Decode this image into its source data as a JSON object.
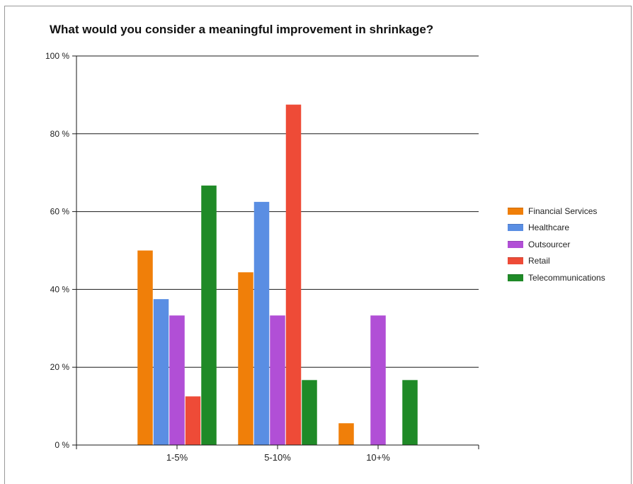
{
  "chart_data": {
    "type": "bar",
    "title": "What would you consider a meaningful improvement in shrinkage?",
    "categories": [
      "1-5%",
      "5-10%",
      "10+%"
    ],
    "series": [
      {
        "name": "Financial Services",
        "color": "#f07f09",
        "values": [
          50,
          44.4,
          5.6
        ]
      },
      {
        "name": "Healthcare",
        "color": "#5a8ee3",
        "values": [
          37.5,
          62.5,
          0
        ]
      },
      {
        "name": "Outsourcer",
        "color": "#b14fd6",
        "values": [
          33.3,
          33.3,
          33.3
        ]
      },
      {
        "name": "Retail",
        "color": "#ee4b37",
        "values": [
          12.5,
          87.5,
          0
        ]
      },
      {
        "name": "Telecommunications",
        "color": "#1f8a27",
        "values": [
          66.7,
          16.7,
          16.7
        ]
      }
    ],
    "yticks": [
      "0 %",
      "20 %",
      "40 %",
      "60 %",
      "80 %",
      "100 %"
    ],
    "ylim": [
      0,
      100
    ],
    "grid": true,
    "legend_position": "right"
  }
}
